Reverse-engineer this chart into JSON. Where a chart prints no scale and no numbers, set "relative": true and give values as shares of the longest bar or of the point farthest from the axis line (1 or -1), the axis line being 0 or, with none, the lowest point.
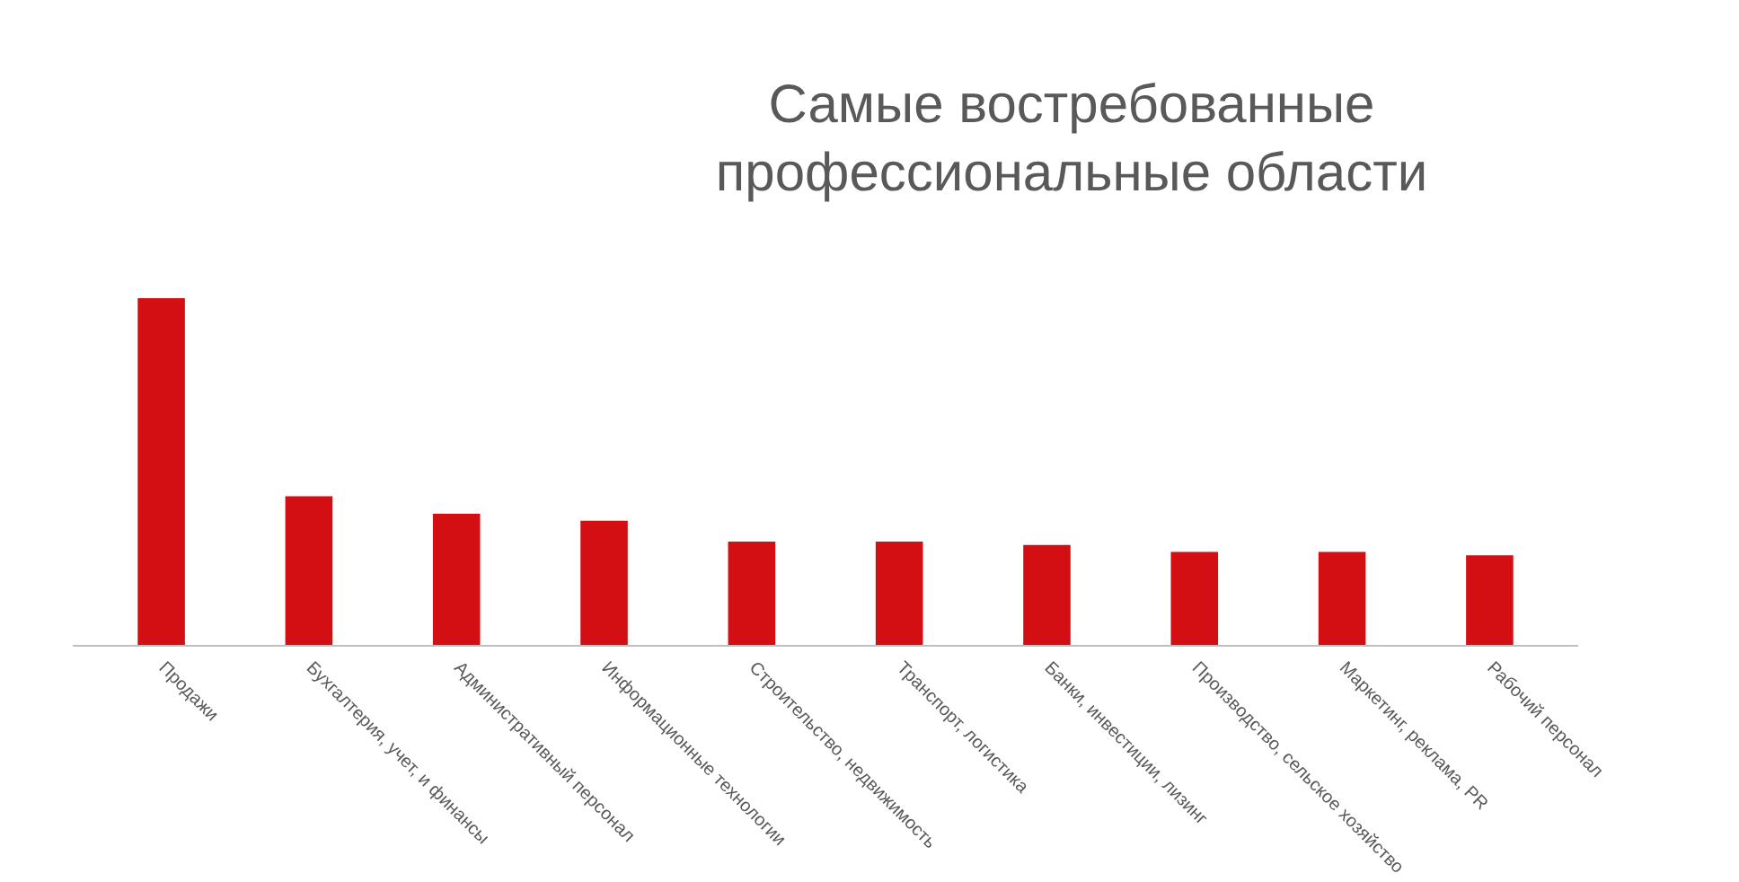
{
  "chart_data": {
    "type": "bar",
    "title": "Самые востребованные профессиональные области",
    "relative": true,
    "color": "#d40f14",
    "categories": [
      "Продажи",
      "Бухгалтерия,  учет, и финансы",
      "Административный персонал",
      "Информационные технологии",
      "Строительство, недвижимость",
      "Транспорт, логистика",
      "Банки, инвестиции, лизинг",
      "Производство, сельское хозяйство",
      "Маркетинг, реклама, PR",
      "Рабочий персонал"
    ],
    "values": [
      1,
      0.43,
      0.38,
      0.36,
      0.3,
      0.3,
      0.29,
      0.27,
      0.27,
      0.26
    ],
    "grid": false
  }
}
